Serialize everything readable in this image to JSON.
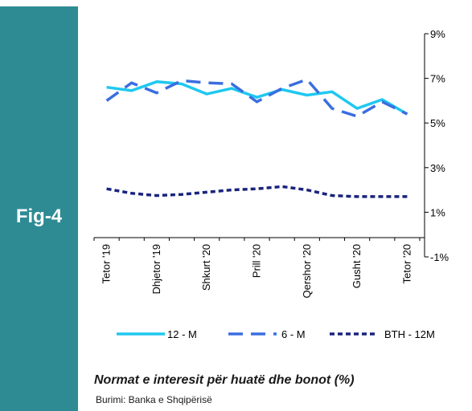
{
  "figure": {
    "label": "Fig-4",
    "caption": "Normat e interesit për huatë dhe bonot (%)",
    "source": "Burimi: Banka e Shqipërisë",
    "sidebar_color": "#2e8b94"
  },
  "chart_data": {
    "type": "line",
    "title": "",
    "xlabel": "",
    "ylabel": "",
    "x_tick_labels": [
      "Tetor '19",
      "Dhjetor '19",
      "Shkurt '20",
      "Prill '20",
      "Qershor '20",
      "Gusht '20",
      "Tetor '20"
    ],
    "x": [
      "Tetor '19",
      "Nëntor '19",
      "Dhjetor '19",
      "Janar '20",
      "Shkurt '20",
      "Mars '20",
      "Prill '20",
      "Maj '20",
      "Qershor '20",
      "Korrik '20",
      "Gusht '20",
      "Shtator '20",
      "Tetor '20"
    ],
    "y_axis": {
      "position": "right",
      "ylim": [
        -1,
        9
      ],
      "ticks": [
        -1,
        1,
        3,
        5,
        7,
        9
      ],
      "tick_labels": [
        "-1%",
        "1%",
        "3%",
        "5%",
        "7%",
        "9%"
      ]
    },
    "grid": false,
    "legend_position": "bottom",
    "series": [
      {
        "name": "12 - M",
        "color": "#1fc8f0",
        "style": "solid",
        "values": [
          6.6,
          6.45,
          6.85,
          6.75,
          6.3,
          6.55,
          6.15,
          6.5,
          6.25,
          6.4,
          5.65,
          6.05,
          5.4
        ]
      },
      {
        "name": "6 - M",
        "color": "#3a6ee0",
        "style": "longdash",
        "values": [
          6.0,
          6.8,
          6.35,
          6.9,
          6.8,
          6.75,
          5.95,
          6.55,
          6.95,
          5.65,
          5.3,
          5.95,
          5.4
        ]
      },
      {
        "name": "BTH - 12M",
        "color": "#1a237e",
        "style": "shortdash",
        "values": [
          2.05,
          1.85,
          1.75,
          1.8,
          1.9,
          2.0,
          2.05,
          2.15,
          2.0,
          1.75,
          1.7,
          1.7,
          1.7
        ]
      }
    ]
  }
}
